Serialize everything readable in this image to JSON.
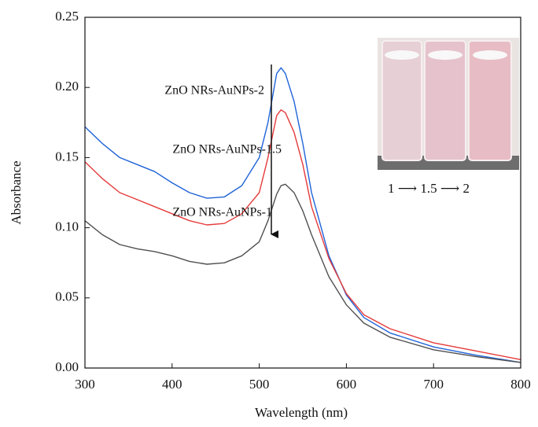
{
  "chart_data": {
    "type": "line",
    "x_label": "Wavelength (nm)",
    "y_label": "Absorbance",
    "x": [
      300,
      320,
      340,
      360,
      380,
      400,
      420,
      440,
      460,
      480,
      500,
      510,
      520,
      525,
      530,
      540,
      550,
      560,
      580,
      600,
      620,
      650,
      700,
      750,
      800
    ],
    "series": [
      {
        "name": "ZnO NRs-AuNPs-2",
        "color": "#1f63d8",
        "values": [
          0.172,
          0.16,
          0.15,
          0.145,
          0.14,
          0.132,
          0.125,
          0.121,
          0.122,
          0.13,
          0.15,
          0.175,
          0.21,
          0.214,
          0.21,
          0.19,
          0.16,
          0.125,
          0.08,
          0.052,
          0.036,
          0.025,
          0.015,
          0.009,
          0.004
        ]
      },
      {
        "name": "ZnO NRs-AuNPs-1.5",
        "color": "#e53a3a",
        "values": [
          0.147,
          0.135,
          0.125,
          0.12,
          0.115,
          0.11,
          0.105,
          0.102,
          0.103,
          0.11,
          0.125,
          0.15,
          0.18,
          0.184,
          0.182,
          0.168,
          0.145,
          0.115,
          0.078,
          0.053,
          0.038,
          0.028,
          0.018,
          0.012,
          0.006
        ]
      },
      {
        "name": "ZnO NRs-AuNPs-1",
        "color": "#505050",
        "values": [
          0.105,
          0.095,
          0.088,
          0.085,
          0.083,
          0.08,
          0.076,
          0.074,
          0.075,
          0.08,
          0.09,
          0.105,
          0.124,
          0.13,
          0.131,
          0.125,
          0.112,
          0.095,
          0.065,
          0.045,
          0.032,
          0.022,
          0.013,
          0.008,
          0.004
        ]
      }
    ],
    "xlim": [
      300,
      800
    ],
    "xticks": [
      300,
      400,
      500,
      600,
      700,
      800
    ],
    "ylim": [
      0,
      0.25
    ],
    "yticks": [
      {
        "value": 0,
        "label": "0.00"
      },
      {
        "value": 0.05,
        "label": "0.05"
      },
      {
        "value": 0.1,
        "label": "0.10"
      },
      {
        "value": 0.15,
        "label": "0.15"
      },
      {
        "value": 0.2,
        "label": "0.20"
      },
      {
        "value": 0.25,
        "label": "0.25"
      }
    ],
    "grid": false,
    "inset_label": "1 ⟶ 1.5 ⟶ 2"
  }
}
